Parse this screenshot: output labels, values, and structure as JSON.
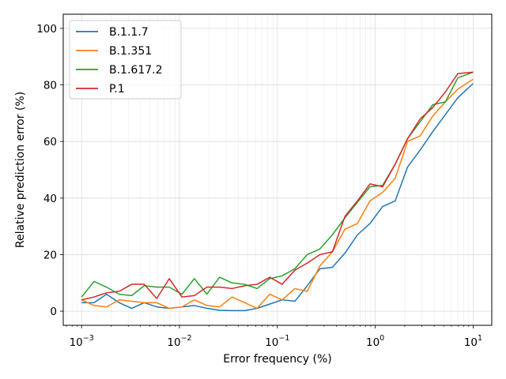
{
  "chart_data": {
    "type": "line",
    "title": "",
    "xlabel": "Error frequency (%)",
    "ylabel": "Relative prediction error (%)",
    "xscale": "log",
    "xlim": [
      0.00065,
      15.5
    ],
    "ylim": [
      -5,
      105
    ],
    "grid": true,
    "legend_position": "top-left",
    "x_ticks": [
      {
        "base": "10",
        "exp": "−3",
        "value": 0.001
      },
      {
        "base": "10",
        "exp": "−2",
        "value": 0.01
      },
      {
        "base": "10",
        "exp": "−1",
        "value": 0.1
      },
      {
        "base": "10",
        "exp": "0",
        "value": 1
      },
      {
        "base": "10",
        "exp": "1",
        "value": 10
      }
    ],
    "y_ticks": [
      "0",
      "20",
      "40",
      "60",
      "80",
      "100"
    ],
    "y_tick_values": [
      0,
      20,
      40,
      60,
      80,
      100
    ],
    "x": [
      0.001,
      0.00134,
      0.0018,
      0.00242,
      0.00325,
      0.00437,
      0.00586,
      0.00787,
      0.0106,
      0.0142,
      0.0191,
      0.0257,
      0.0345,
      0.0463,
      0.0622,
      0.0835,
      0.112,
      0.151,
      0.202,
      0.272,
      0.365,
      0.49,
      0.658,
      0.884,
      1.19,
      1.6,
      2.14,
      2.88,
      3.87,
      5.2,
      6.98,
      9.99
    ],
    "series": [
      {
        "name": "B.1.1.7",
        "color": "#1f77b4",
        "values": [
          3.0,
          3.0,
          6.0,
          3.0,
          1.0,
          3.0,
          1.5,
          1.0,
          1.5,
          2.0,
          1.0,
          0.3,
          0.2,
          0.2,
          1.0,
          2.5,
          4.0,
          3.5,
          9.0,
          15.0,
          15.5,
          20.5,
          27.0,
          31.0,
          37.0,
          39.0,
          51.0,
          57.0,
          63.5,
          69.5,
          75.5,
          80.5
        ]
      },
      {
        "name": "B.1.351",
        "color": "#ff7f0e",
        "values": [
          4.0,
          2.0,
          1.5,
          4.0,
          3.5,
          3.0,
          3.0,
          1.0,
          1.5,
          4.0,
          2.0,
          1.5,
          5.0,
          3.0,
          1.0,
          6.0,
          4.0,
          8.0,
          7.0,
          16.0,
          21.0,
          29.0,
          31.0,
          39.0,
          42.0,
          47.0,
          60.0,
          62.0,
          69.0,
          74.0,
          78.5,
          82.0
        ]
      },
      {
        "name": "B.1.617.2",
        "color": "#2ca02c",
        "values": [
          5.0,
          10.5,
          8.5,
          6.0,
          5.5,
          9.0,
          8.5,
          8.5,
          6.0,
          11.5,
          6.0,
          12.0,
          10.0,
          9.5,
          8.0,
          11.5,
          12.5,
          15.0,
          20.0,
          22.0,
          27.0,
          33.0,
          38.5,
          44.0,
          44.5,
          52.0,
          61.0,
          67.0,
          73.0,
          74.0,
          82.5,
          84.5
        ]
      },
      {
        "name": "P.1",
        "color": "#d62728",
        "values": [
          4.0,
          5.0,
          6.5,
          7.0,
          9.5,
          9.5,
          4.5,
          11.5,
          5.0,
          5.5,
          8.5,
          8.5,
          8.0,
          9.0,
          9.5,
          12.0,
          9.5,
          14.5,
          17.0,
          20.0,
          21.0,
          33.5,
          39.0,
          45.0,
          44.0,
          52.0,
          61.0,
          68.0,
          72.0,
          77.5,
          84.0,
          84.5
        ]
      }
    ]
  }
}
